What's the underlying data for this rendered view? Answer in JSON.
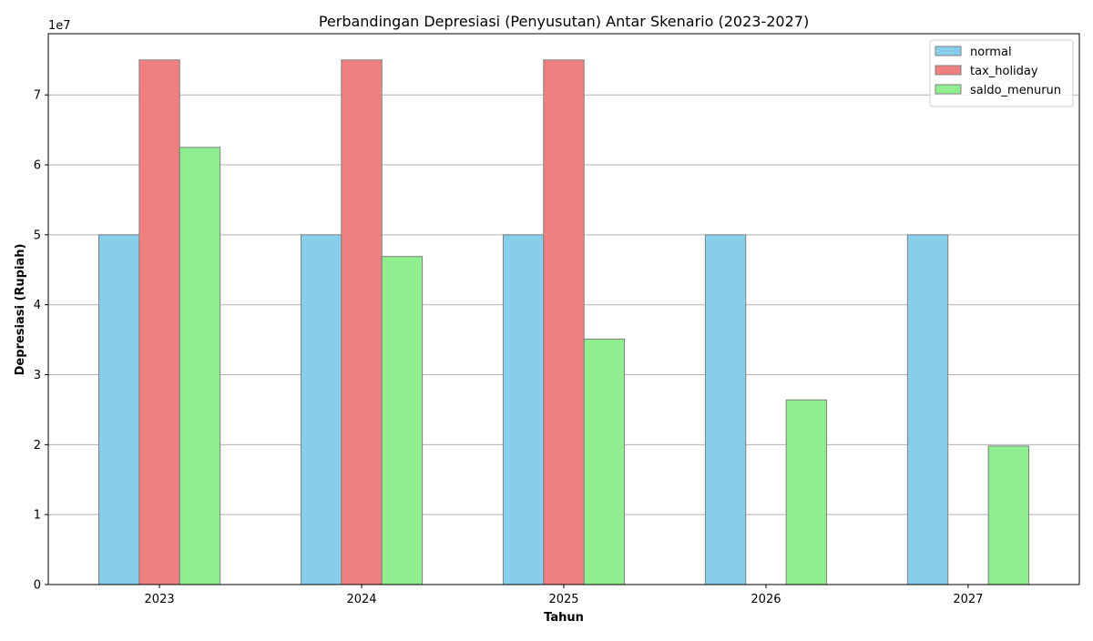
{
  "chart_data": {
    "type": "bar",
    "title": "Perbandingan Depresiasi (Penyusutan) Antar Skenario (2023-2027)",
    "xlabel": "Tahun",
    "ylabel": "Depresiasi (Rupiah)",
    "y_offset_text": "1e7",
    "categories": [
      "2023",
      "2024",
      "2025",
      "2026",
      "2027"
    ],
    "series": [
      {
        "name": "normal",
        "color": "#87CEEB",
        "values": [
          50000000,
          50000000,
          50000000,
          50000000,
          50000000
        ]
      },
      {
        "name": "tax_holiday",
        "color": "#F08080",
        "values": [
          75000000,
          75000000,
          75000000,
          0,
          0
        ]
      },
      {
        "name": "saldo_menurun",
        "color": "#90EE90",
        "values": [
          62500000,
          46900000,
          35100000,
          26400000,
          19800000
        ]
      }
    ],
    "y_ticks": [
      0,
      10000000,
      20000000,
      30000000,
      40000000,
      50000000,
      60000000,
      70000000
    ],
    "y_tick_labels": [
      "0",
      "1",
      "2",
      "3",
      "4",
      "5",
      "6",
      "7"
    ],
    "ylim": [
      0,
      78750000
    ],
    "grid": "horizontal",
    "legend_position": "top-right",
    "edge_color": "#808080"
  }
}
